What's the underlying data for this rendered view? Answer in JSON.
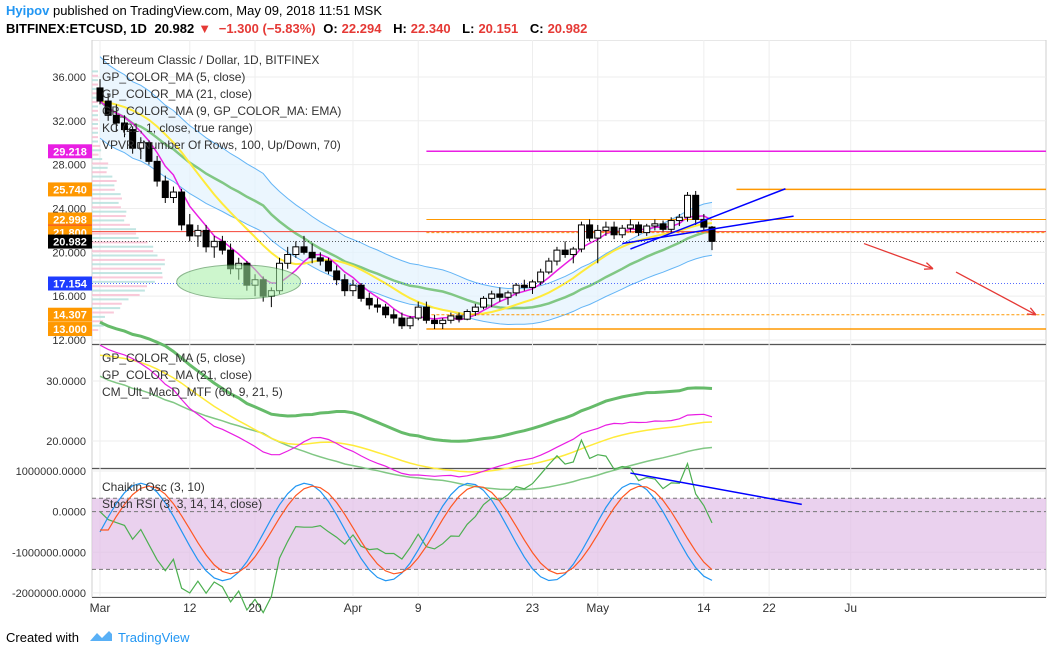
{
  "header": {
    "user": "Hyipov",
    "published": "published on TradingView.com, May 09, 2018 11:51 MSK",
    "symbol": "BITFINEX:ETCUSD, 1D",
    "last": "20.982",
    "arrow": "▼",
    "change": "−1.300 (−5.83%)",
    "o_label": "O:",
    "o_value": "22.294",
    "h_label": "H:",
    "h_value": "22.340",
    "l_label": "L:",
    "l_value": "20.151",
    "c_label": "C:",
    "c_value": "20.982"
  },
  "footer": {
    "created": "Created with",
    "brand": "TradingView"
  },
  "colors": {
    "up": "#ffffff",
    "down": "#000000",
    "accent": "#2196f3",
    "loss": "#e53935",
    "stoch_band": "#e1bee7"
  },
  "chart_data": [
    {
      "type": "candlestick",
      "title": "Ethereum Classic / Dollar, 1D, BITFINEX",
      "legend": [
        "GP_COLOR_MA (5, close)",
        "GP_COLOR_MA (21, close)",
        "GP_COLOR_MA (9, GP_COLOR_MA: EMA)",
        "KC (21, 1, close, true range)",
        "VPVR (Number Of Rows, 100, Up/Down, 70)"
      ],
      "ylim": [
        12,
        37
      ],
      "y_ticks": [
        "36.000",
        "32.000",
        "28.000",
        "24.000",
        "20.000",
        "16.000",
        "12.000"
      ],
      "price_tags": [
        {
          "label": "29.218",
          "value": 29.218,
          "color": "#e91ee3"
        },
        {
          "label": "25.740",
          "value": 25.74,
          "color": "#ff9800"
        },
        {
          "label": "22.998",
          "value": 22.998,
          "color": "#ff9800"
        },
        {
          "label": "21.890",
          "value": 21.89,
          "color": "#f44336"
        },
        {
          "label": "21.800",
          "value": 21.8,
          "color": "#ff9800"
        },
        {
          "label": "20.982",
          "value": 20.982,
          "color": "#000000"
        },
        {
          "label": "17.154",
          "value": 17.154,
          "color": "#1e3cff"
        },
        {
          "label": "14.307",
          "value": 14.307,
          "color": "#ff9800"
        },
        {
          "label": "13.000",
          "value": 13.0,
          "color": "#ff9800"
        }
      ],
      "candles": [
        [
          35.0,
          35.8,
          33.5,
          33.8
        ],
        [
          33.8,
          34.5,
          32.0,
          32.5
        ],
        [
          32.5,
          33.5,
          31.0,
          31.8
        ],
        [
          31.8,
          32.5,
          30.5,
          31.2
        ],
        [
          31.2,
          31.5,
          29.0,
          29.5
        ],
        [
          29.5,
          30.5,
          28.5,
          30.0
        ],
        [
          30.0,
          30.2,
          28.0,
          28.3
        ],
        [
          28.3,
          28.8,
          26.0,
          26.5
        ],
        [
          26.5,
          27.0,
          24.5,
          25.0
        ],
        [
          25.0,
          26.0,
          24.5,
          25.5
        ],
        [
          25.5,
          25.8,
          22.0,
          22.5
        ],
        [
          22.5,
          23.5,
          21.0,
          21.5
        ],
        [
          21.5,
          22.5,
          20.5,
          22.0
        ],
        [
          22.0,
          22.5,
          20.0,
          20.5
        ],
        [
          20.5,
          21.5,
          19.5,
          21.0
        ],
        [
          21.0,
          21.5,
          19.8,
          20.2
        ],
        [
          20.2,
          20.8,
          18.0,
          18.5
        ],
        [
          18.5,
          19.5,
          17.5,
          19.0
        ],
        [
          19.0,
          19.2,
          16.5,
          17.0
        ],
        [
          17.0,
          18.0,
          16.0,
          17.5
        ],
        [
          17.5,
          17.8,
          15.5,
          16.0
        ],
        [
          16.0,
          16.8,
          15.0,
          16.5
        ],
        [
          16.5,
          19.5,
          16.2,
          19.0
        ],
        [
          19.0,
          20.5,
          18.5,
          19.8
        ],
        [
          19.8,
          21.0,
          19.5,
          20.5
        ],
        [
          20.5,
          21.5,
          19.8,
          20.0
        ],
        [
          20.0,
          20.8,
          19.0,
          19.5
        ],
        [
          19.5,
          20.0,
          18.8,
          19.2
        ],
        [
          19.2,
          19.5,
          18.0,
          18.3
        ],
        [
          18.3,
          18.8,
          17.0,
          17.5
        ],
        [
          17.5,
          18.0,
          16.0,
          16.5
        ],
        [
          16.5,
          17.5,
          16.0,
          17.0
        ],
        [
          17.0,
          17.2,
          15.5,
          15.8
        ],
        [
          15.8,
          16.3,
          14.8,
          15.2
        ],
        [
          15.2,
          15.8,
          14.5,
          15.0
        ],
        [
          15.0,
          15.3,
          14.0,
          14.3
        ],
        [
          14.3,
          14.8,
          13.5,
          14.0
        ],
        [
          14.0,
          14.5,
          13.0,
          13.3
        ],
        [
          13.3,
          14.2,
          13.0,
          14.0
        ],
        [
          14.0,
          15.5,
          13.8,
          15.0
        ],
        [
          15.0,
          15.5,
          13.5,
          13.8
        ],
        [
          13.8,
          14.3,
          13.0,
          13.5
        ],
        [
          13.5,
          14.0,
          13.0,
          13.8
        ],
        [
          13.8,
          14.5,
          13.5,
          14.2
        ],
        [
          14.2,
          14.5,
          13.6,
          13.9
        ],
        [
          13.9,
          14.8,
          13.8,
          14.6
        ],
        [
          14.6,
          15.3,
          14.2,
          15.0
        ],
        [
          15.0,
          16.0,
          14.8,
          15.8
        ],
        [
          15.8,
          16.5,
          15.0,
          16.2
        ],
        [
          16.2,
          16.8,
          15.5,
          15.9
        ],
        [
          15.9,
          16.5,
          15.2,
          16.3
        ],
        [
          16.3,
          17.2,
          16.0,
          17.0
        ],
        [
          17.0,
          17.5,
          16.5,
          16.8
        ],
        [
          16.8,
          17.5,
          16.2,
          17.3
        ],
        [
          17.3,
          18.5,
          17.0,
          18.2
        ],
        [
          18.2,
          19.5,
          18.0,
          19.2
        ],
        [
          19.2,
          20.5,
          18.8,
          20.2
        ],
        [
          20.2,
          21.0,
          19.5,
          19.8
        ],
        [
          19.8,
          20.5,
          19.0,
          20.3
        ],
        [
          20.3,
          22.8,
          20.0,
          22.5
        ],
        [
          22.5,
          23.0,
          21.0,
          21.3
        ],
        [
          21.3,
          22.5,
          19.0,
          22.0
        ],
        [
          22.0,
          22.8,
          21.5,
          22.3
        ],
        [
          22.3,
          22.8,
          21.2,
          21.6
        ],
        [
          21.6,
          22.5,
          21.3,
          22.2
        ],
        [
          22.2,
          23.0,
          21.8,
          22.5
        ],
        [
          22.5,
          22.8,
          21.5,
          21.8
        ],
        [
          21.8,
          22.6,
          21.5,
          22.4
        ],
        [
          22.4,
          23.0,
          22.0,
          22.6
        ],
        [
          22.6,
          22.9,
          21.9,
          22.1
        ],
        [
          22.1,
          23.2,
          21.8,
          22.9
        ],
        [
          22.9,
          23.5,
          22.4,
          23.2
        ],
        [
          23.2,
          25.5,
          22.8,
          25.2
        ],
        [
          25.2,
          25.6,
          22.5,
          23.0
        ],
        [
          23.0,
          23.5,
          22.0,
          22.3
        ],
        [
          22.3,
          22.4,
          20.2,
          21.0
        ]
      ],
      "annotations": [
        "blue trendline",
        "red projection arrows",
        "green ellipse"
      ]
    },
    {
      "type": "line",
      "legend": [
        "GP_COLOR_MA (5, close)",
        "GP_COLOR_MA (21, close)",
        "CM_Ult_MacD_MTF (60, 9, 21, 5)"
      ],
      "ylim": [
        15.5,
        36
      ],
      "y_ticks": [
        "30.0000",
        "20.0000"
      ]
    },
    {
      "type": "line",
      "legend": [
        "Chaikin Osc (3, 10)",
        "Stoch RSI (3, 3, 14, 14, close)"
      ],
      "ylim": [
        -2100000,
        1050000
      ],
      "y_ticks": [
        "1000000.0000",
        "0.0000",
        "-1000000.0000",
        "-2000000.0000"
      ]
    }
  ],
  "x_ticks": [
    {
      "label": "Mar",
      "value": 1
    },
    {
      "label": "12",
      "value": 12
    },
    {
      "label": "20",
      "value": 20
    },
    {
      "label": "Apr",
      "value": 32
    },
    {
      "label": "9",
      "value": 40
    },
    {
      "label": "23",
      "value": 54
    },
    {
      "label": "May",
      "value": 62
    },
    {
      "label": "14",
      "value": 75
    },
    {
      "label": "22",
      "value": 83
    },
    {
      "label": "Ju",
      "value": 93
    }
  ]
}
